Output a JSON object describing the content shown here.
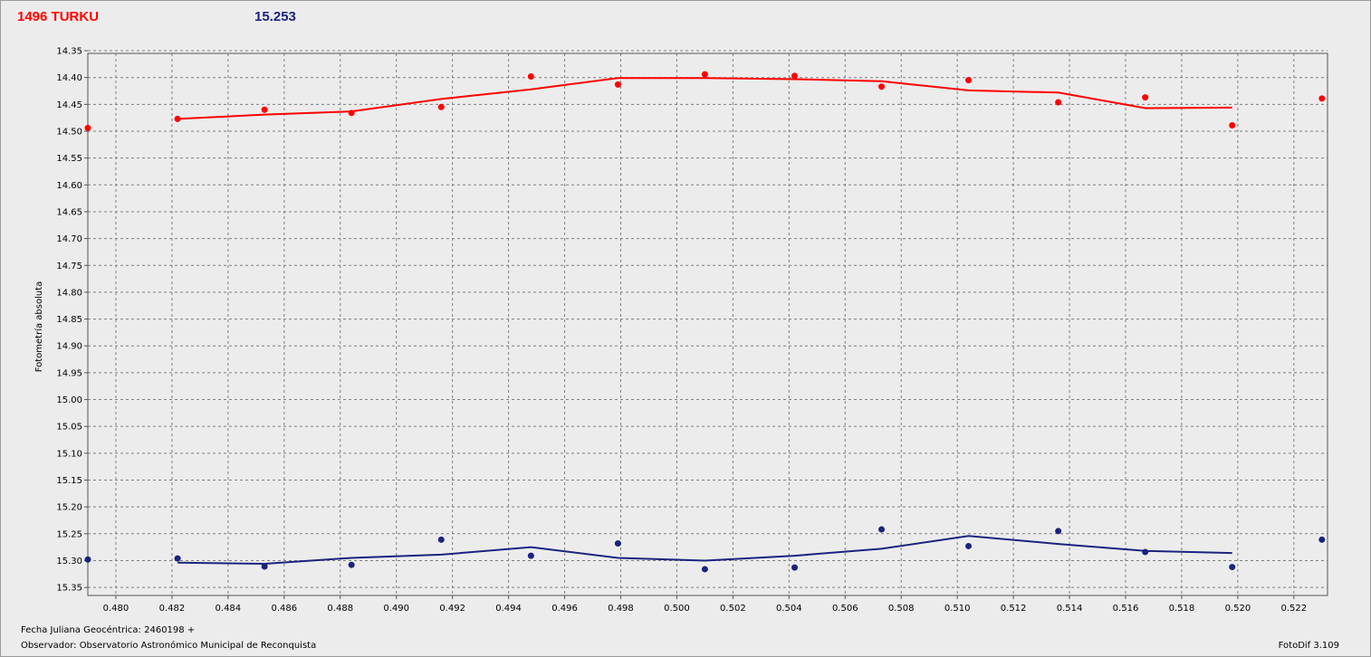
{
  "header": {
    "object_label": "1496 TURKU",
    "reference_value": "15.253"
  },
  "footer": {
    "julian_date": "Fecha Juliana Geocéntrica: 2460198 +",
    "observer": "Observador: Observatorio Astronómico Municipal de Reconquista",
    "software": "FotoDif 3.109"
  },
  "colors": {
    "series_red": "#ff0000",
    "series_blue": "#1a237e",
    "plot_background": "#ececec",
    "grid": "#7f7f7f"
  },
  "chart_data": {
    "type": "scatter",
    "ylabel": "Fotometría absoluta",
    "xlabel": "",
    "xlim": [
      0.479,
      0.5232
    ],
    "ylim": [
      14.355,
      15.365
    ],
    "y_inverted": true,
    "grid": true,
    "x_ticks": [
      "0.480",
      "0.482",
      "0.484",
      "0.486",
      "0.488",
      "0.490",
      "0.492",
      "0.494",
      "0.496",
      "0.498",
      "0.500",
      "0.502",
      "0.504",
      "0.506",
      "0.508",
      "0.510",
      "0.512",
      "0.514",
      "0.516",
      "0.518",
      "0.520",
      "0.522"
    ],
    "y_ticks": [
      "14.35",
      "14.40",
      "14.45",
      "14.50",
      "14.55",
      "14.60",
      "14.65",
      "14.70",
      "14.75",
      "14.80",
      "14.85",
      "14.90",
      "14.95",
      "15.00",
      "15.05",
      "15.10",
      "15.15",
      "15.20",
      "15.25",
      "15.30",
      "15.35"
    ],
    "series": [
      {
        "color": "#ff0000",
        "points_x": [
          0.479,
          0.4822,
          0.4853,
          0.4884,
          0.4916,
          0.4948,
          0.4979,
          0.501,
          0.5042,
          0.5073,
          0.5104,
          0.5136,
          0.5167,
          0.5198,
          0.523
        ],
        "points_y": [
          14.494,
          14.477,
          14.46,
          14.466,
          14.455,
          14.398,
          14.413,
          14.394,
          14.397,
          14.417,
          14.405,
          14.446,
          14.437,
          14.489,
          14.439
        ],
        "line_x": [
          0.4822,
          0.4853,
          0.4884,
          0.4916,
          0.4948,
          0.4979,
          0.501,
          0.5042,
          0.5073,
          0.5104,
          0.5136,
          0.5167,
          0.5198
        ],
        "line_y": [
          14.477,
          14.469,
          14.463,
          14.44,
          14.422,
          14.401,
          14.401,
          14.403,
          14.407,
          14.424,
          14.428,
          14.457,
          14.456
        ]
      },
      {
        "color": "#1a237e",
        "points_x": [
          0.479,
          0.4822,
          0.4853,
          0.4884,
          0.4916,
          0.4948,
          0.4979,
          0.501,
          0.5042,
          0.5073,
          0.5104,
          0.5136,
          0.5167,
          0.5198,
          0.523
        ],
        "points_y": [
          15.298,
          15.296,
          15.311,
          15.308,
          15.261,
          15.291,
          15.268,
          15.316,
          15.313,
          15.242,
          15.273,
          15.245,
          15.284,
          15.312,
          15.261
        ],
        "line_x": [
          0.4822,
          0.4853,
          0.4884,
          0.4916,
          0.4948,
          0.4979,
          0.501,
          0.5042,
          0.5073,
          0.5104,
          0.5136,
          0.5167,
          0.5198
        ],
        "line_y": [
          15.304,
          15.306,
          15.295,
          15.289,
          15.275,
          15.295,
          15.3,
          15.291,
          15.278,
          15.254,
          15.269,
          15.282,
          15.286
        ]
      }
    ]
  }
}
